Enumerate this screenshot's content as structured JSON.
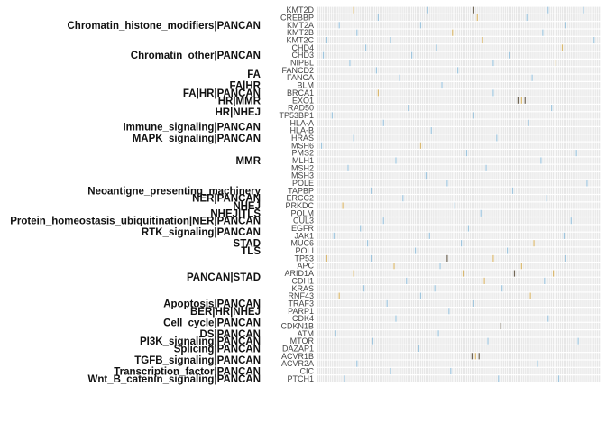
{
  "chart_data": {
    "type": "heatmap",
    "title": "",
    "xlabel": "",
    "ylabel": "",
    "genes": [
      "KMT2D",
      "CREBBP",
      "KMT2A",
      "KMT2B",
      "KMT2C",
      "CHD4",
      "CHD3",
      "NIPBL",
      "FANCD2",
      "FANCA",
      "BLM",
      "BRCA1",
      "EXO1",
      "RAD50",
      "TP53BP1",
      "HLA-A",
      "HLA-B",
      "HRAS",
      "MSH6",
      "PMS2",
      "MLH1",
      "MSH2",
      "MSH3",
      "POLE",
      "TAPBP",
      "ERCC2",
      "PRKDC",
      "POLM",
      "CUL3",
      "EGFR",
      "JAK1",
      "MUC6",
      "POLI",
      "TP53",
      "APC",
      "ARID1A",
      "CDH1",
      "KRAS",
      "RNF43",
      "TRAF3",
      "PARP1",
      "CDK4",
      "CDKN1B",
      "ATM",
      "MTOR",
      "DAZAP1",
      "ACVR1B",
      "ACVR2A",
      "CIC",
      "PTCH1"
    ],
    "gene_labels_shown": [
      "KMT2D",
      "CREBBP",
      "KMT2A",
      "KMT2B",
      "KMT2C",
      "CHD4",
      "CHD3",
      "NIPBL",
      "FANCD2",
      "FANCA",
      "BLM",
      "BRCA1",
      "EXO1",
      "RAD50",
      "TP53BP1",
      "HLA-A",
      "HLA-B",
      "HRAS",
      "MSH6",
      "PMS2",
      "MLH1",
      "MSH2",
      "MSH3",
      "POLE",
      "TAPBP",
      "ERCC2",
      "PRKDC",
      "POLM",
      "CUL3",
      "EGFR",
      "JAK1",
      "MUC6",
      "POLI",
      "TP53",
      "APC",
      "ARID1A",
      "CDH1",
      "KRAS",
      "RNF43",
      "TRAF3",
      "PARP1",
      "CDK4",
      "CDKN1B",
      "ATM",
      "MTOR",
      "DAZAP1",
      "ACVR1B",
      "ACVR2A",
      "CIC",
      "PTCH1"
    ],
    "groups": [
      {
        "label": "Chromatin_histone_modifiers|PANCAN",
        "from": 0,
        "to": 4
      },
      {
        "label": "Chromatin_other|PANCAN",
        "from": 5,
        "to": 7
      },
      {
        "label": "FA",
        "from": 8,
        "to": 9
      },
      {
        "label": "FA|HR",
        "from": 10,
        "to": 10
      },
      {
        "label": "FA|HR|PANCAN",
        "from": 11,
        "to": 11
      },
      {
        "label": "HR|MMR",
        "from": 12,
        "to": 12
      },
      {
        "label": "HR|NHEJ",
        "from": 13,
        "to": 14
      },
      {
        "label": "Immune_signaling|PANCAN",
        "from": 15,
        "to": 16
      },
      {
        "label": "MAPK_signaling|PANCAN",
        "from": 17,
        "to": 17
      },
      {
        "label": "MMR",
        "from": 18,
        "to": 22
      },
      {
        "label": "Neoantigne_presenting_machinery",
        "from": 24,
        "to": 24
      },
      {
        "label": "NER|PANCAN",
        "from": 25,
        "to": 25
      },
      {
        "label": "NHEJ",
        "from": 26,
        "to": 26
      },
      {
        "label": "NHEJ|TLS",
        "from": 27,
        "to": 27
      },
      {
        "label": "Protein_homeostasis_ubiquitination|NER|PANCAN",
        "from": 28,
        "to": 28
      },
      {
        "label": "RTK_signaling|PANCAN",
        "from": 29,
        "to": 30
      },
      {
        "label": "STAD",
        "from": 31,
        "to": 31
      },
      {
        "label": "TLS",
        "from": 32,
        "to": 32
      },
      {
        "label": "PANCAN|STAD",
        "from": 33,
        "to": 38
      },
      {
        "label": "Apoptosis|PANCAN",
        "from": 39,
        "to": 39
      },
      {
        "label": "BER|HR|NHEJ",
        "from": 40,
        "to": 40
      },
      {
        "label": "Cell_cycle|PANCAN",
        "from": 41,
        "to": 42
      },
      {
        "label": "DS|PANCAN",
        "from": 43,
        "to": 43
      },
      {
        "label": "PI3K_signaling|PANCAN",
        "from": 44,
        "to": 44
      },
      {
        "label": "Splicing|PANCAN",
        "from": 45,
        "to": 45
      },
      {
        "label": "TGFB_signaling|PANCAN",
        "from": 46,
        "to": 47
      },
      {
        "label": "Transcription_factor|PANCAN",
        "from": 48,
        "to": 48
      },
      {
        "label": "Wnt_B_catenin_signaling|PANCAN",
        "from": 49,
        "to": 49
      }
    ],
    "n_samples": 160,
    "sample_labels": [
      "",
      "",
      "",
      "",
      "",
      "",
      "",
      "",
      "",
      "",
      "",
      "",
      "",
      "",
      "",
      "",
      "",
      "",
      "",
      "",
      "",
      "",
      "",
      "",
      "",
      "",
      "",
      "",
      "",
      "",
      "",
      "",
      "",
      "",
      "",
      "",
      "",
      "",
      "",
      "",
      "",
      "",
      "",
      "",
      "",
      "",
      "",
      "",
      "",
      "",
      "",
      "",
      "",
      "",
      "",
      "",
      "",
      "",
      "",
      "",
      "",
      "",
      "",
      "",
      "",
      "",
      "",
      "",
      "",
      "",
      "",
      "",
      "",
      "",
      "",
      "",
      "",
      "",
      "",
      "",
      "",
      "",
      "",
      "",
      "",
      "",
      "",
      "",
      "",
      "",
      "",
      "",
      "",
      "",
      "",
      "",
      "",
      "",
      "",
      "",
      "",
      "",
      "",
      "",
      "",
      "",
      "",
      "",
      "",
      "",
      "",
      "",
      "",
      "",
      "",
      "",
      "",
      "",
      "",
      "",
      "",
      "",
      "",
      "",
      "",
      "",
      "",
      "",
      "",
      "",
      "",
      "",
      "",
      "",
      "",
      "",
      "",
      "",
      "",
      "",
      "",
      "",
      "",
      "",
      "",
      "",
      "",
      "",
      "",
      "",
      "",
      "",
      "",
      "",
      "",
      "",
      "",
      "",
      "",
      ""
    ],
    "colors": {
      "empty": "#e7e7e7",
      "missense": "#9fc5dd",
      "truncating": "#d9b870",
      "multi": "#6f6555"
    },
    "mutations": [
      [
        0,
        20,
        "truncating"
      ],
      [
        0,
        62,
        "missense"
      ],
      [
        0,
        88,
        "multi"
      ],
      [
        0,
        130,
        "missense"
      ],
      [
        0,
        150,
        "missense"
      ],
      [
        1,
        34,
        "missense"
      ],
      [
        1,
        90,
        "truncating"
      ],
      [
        1,
        118,
        "missense"
      ],
      [
        2,
        12,
        "missense"
      ],
      [
        2,
        58,
        "missense"
      ],
      [
        2,
        140,
        "missense"
      ],
      [
        3,
        22,
        "missense"
      ],
      [
        3,
        76,
        "truncating"
      ],
      [
        3,
        127,
        "missense"
      ],
      [
        4,
        5,
        "missense"
      ],
      [
        4,
        41,
        "missense"
      ],
      [
        4,
        93,
        "truncating"
      ],
      [
        4,
        156,
        "missense"
      ],
      [
        5,
        27,
        "missense"
      ],
      [
        5,
        67,
        "missense"
      ],
      [
        5,
        138,
        "truncating"
      ],
      [
        6,
        3,
        "missense"
      ],
      [
        6,
        53,
        "missense"
      ],
      [
        6,
        108,
        "missense"
      ],
      [
        7,
        18,
        "missense"
      ],
      [
        7,
        99,
        "missense"
      ],
      [
        7,
        134,
        "truncating"
      ],
      [
        8,
        33,
        "missense"
      ],
      [
        8,
        79,
        "missense"
      ],
      [
        9,
        46,
        "missense"
      ],
      [
        9,
        121,
        "missense"
      ],
      [
        10,
        70,
        "missense"
      ],
      [
        11,
        34,
        "truncating"
      ],
      [
        11,
        99,
        "missense"
      ],
      [
        12,
        113,
        "multi"
      ],
      [
        12,
        115,
        "truncating"
      ],
      [
        12,
        117,
        "multi"
      ],
      [
        13,
        51,
        "missense"
      ],
      [
        13,
        132,
        "missense"
      ],
      [
        14,
        8,
        "missense"
      ],
      [
        14,
        88,
        "missense"
      ],
      [
        15,
        37,
        "missense"
      ],
      [
        15,
        119,
        "missense"
      ],
      [
        16,
        64,
        "missense"
      ],
      [
        17,
        20,
        "missense"
      ],
      [
        17,
        101,
        "missense"
      ],
      [
        18,
        2,
        "missense"
      ],
      [
        18,
        58,
        "truncating"
      ],
      [
        19,
        84,
        "missense"
      ],
      [
        19,
        146,
        "missense"
      ],
      [
        20,
        44,
        "missense"
      ],
      [
        20,
        126,
        "missense"
      ],
      [
        21,
        17,
        "missense"
      ],
      [
        21,
        95,
        "missense"
      ],
      [
        22,
        61,
        "missense"
      ],
      [
        23,
        73,
        "missense"
      ],
      [
        23,
        152,
        "missense"
      ],
      [
        24,
        30,
        "missense"
      ],
      [
        24,
        110,
        "missense"
      ],
      [
        25,
        48,
        "missense"
      ],
      [
        25,
        129,
        "missense"
      ],
      [
        26,
        14,
        "truncating"
      ],
      [
        26,
        77,
        "missense"
      ],
      [
        27,
        92,
        "missense"
      ],
      [
        28,
        37,
        "missense"
      ],
      [
        28,
        143,
        "missense"
      ],
      [
        29,
        24,
        "missense"
      ],
      [
        29,
        85,
        "missense"
      ],
      [
        30,
        9,
        "missense"
      ],
      [
        30,
        63,
        "missense"
      ],
      [
        30,
        139,
        "missense"
      ],
      [
        31,
        28,
        "missense"
      ],
      [
        31,
        81,
        "missense"
      ],
      [
        31,
        122,
        "truncating"
      ],
      [
        32,
        55,
        "missense"
      ],
      [
        32,
        107,
        "missense"
      ],
      [
        33,
        5,
        "truncating"
      ],
      [
        33,
        30,
        "missense"
      ],
      [
        33,
        73,
        "multi"
      ],
      [
        33,
        99,
        "truncating"
      ],
      [
        33,
        140,
        "missense"
      ],
      [
        34,
        43,
        "truncating"
      ],
      [
        34,
        69,
        "missense"
      ],
      [
        34,
        115,
        "truncating"
      ],
      [
        35,
        20,
        "truncating"
      ],
      [
        35,
        82,
        "truncating"
      ],
      [
        35,
        111,
        "multi"
      ],
      [
        35,
        133,
        "truncating"
      ],
      [
        36,
        50,
        "missense"
      ],
      [
        36,
        94,
        "truncating"
      ],
      [
        36,
        128,
        "missense"
      ],
      [
        37,
        26,
        "missense"
      ],
      [
        37,
        66,
        "missense"
      ],
      [
        37,
        104,
        "missense"
      ],
      [
        38,
        12,
        "truncating"
      ],
      [
        38,
        58,
        "missense"
      ],
      [
        38,
        120,
        "truncating"
      ],
      [
        39,
        39,
        "missense"
      ],
      [
        39,
        88,
        "missense"
      ],
      [
        40,
        74,
        "missense"
      ],
      [
        41,
        44,
        "missense"
      ],
      [
        41,
        130,
        "missense"
      ],
      [
        42,
        103,
        "multi"
      ],
      [
        43,
        10,
        "missense"
      ],
      [
        43,
        68,
        "missense"
      ],
      [
        44,
        31,
        "missense"
      ],
      [
        44,
        96,
        "missense"
      ],
      [
        44,
        147,
        "missense"
      ],
      [
        45,
        57,
        "missense"
      ],
      [
        46,
        87,
        "multi"
      ],
      [
        46,
        89,
        "truncating"
      ],
      [
        46,
        91,
        "multi"
      ],
      [
        47,
        22,
        "missense"
      ],
      [
        47,
        124,
        "missense"
      ],
      [
        48,
        41,
        "missense"
      ],
      [
        48,
        75,
        "missense"
      ],
      [
        49,
        15,
        "missense"
      ],
      [
        49,
        102,
        "missense"
      ],
      [
        49,
        136,
        "missense"
      ]
    ]
  }
}
